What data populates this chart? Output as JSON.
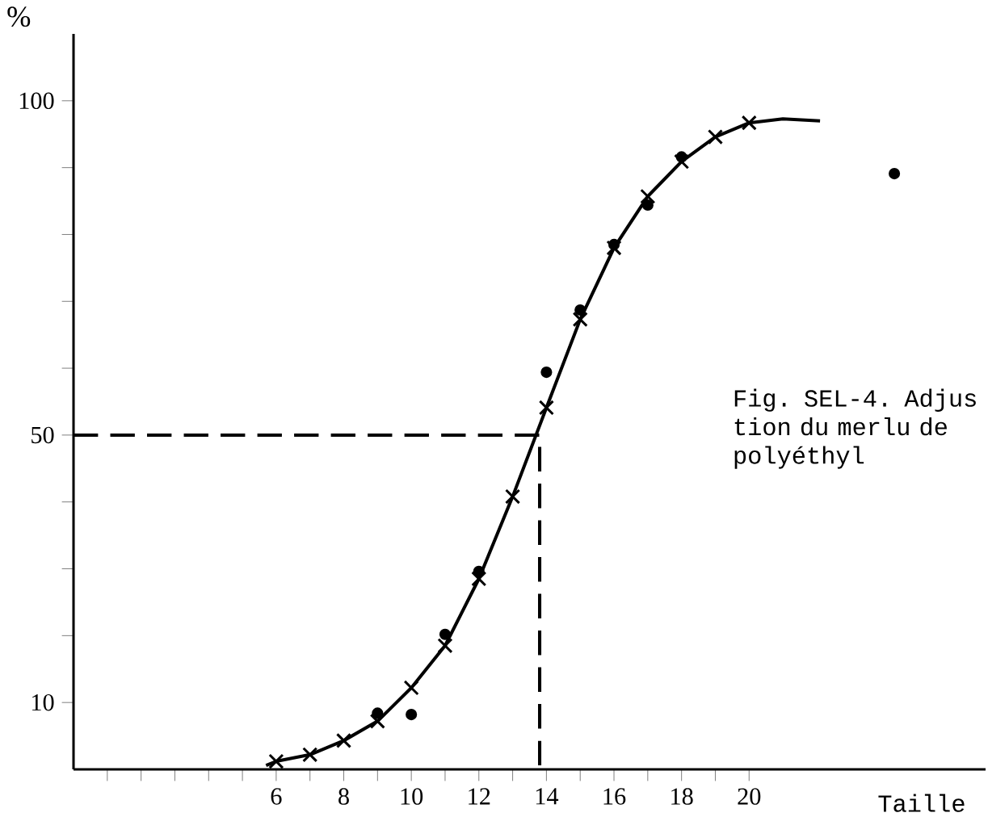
{
  "chart_data": {
    "type": "line",
    "xlabel": "Taille",
    "ylabel": "%",
    "annotations": [
      "Fig. SEL-4. Adjus tion du merlu de polyéthyl"
    ],
    "xlim": [
      0,
      27
    ],
    "ylim": [
      0,
      110
    ],
    "xticks": [
      {
        "value": 1,
        "label": null
      },
      {
        "value": 2,
        "label": null
      },
      {
        "value": 3,
        "label": null
      },
      {
        "value": 4,
        "label": null
      },
      {
        "value": 5,
        "label": null
      },
      6,
      {
        "value": 7,
        "label": null
      },
      8,
      {
        "value": 9,
        "label": null
      },
      10,
      {
        "value": 11,
        "label": null
      },
      12,
      {
        "value": 13,
        "label": null
      },
      14,
      {
        "value": 15,
        "label": null
      },
      16,
      {
        "value": 17,
        "label": null
      },
      18,
      {
        "value": 19,
        "label": null
      },
      20
    ],
    "yticks": [
      10,
      {
        "value": 20,
        "label": null
      },
      {
        "value": 30,
        "label": null
      },
      {
        "value": 40,
        "label": null
      },
      50,
      {
        "value": 60,
        "label": null
      },
      {
        "value": 70,
        "label": null
      },
      {
        "value": 80,
        "label": null
      },
      {
        "value": 90,
        "label": null
      },
      100
    ],
    "series": [
      {
        "type": "line",
        "color": "#000000",
        "marker": "none",
        "line_style": "solid",
        "x": [
          5.7,
          6,
          7,
          8,
          9,
          10,
          11,
          12,
          13,
          14,
          15,
          16,
          17,
          18,
          19,
          20,
          21,
          22.1
        ],
        "values": [
          0.6,
          1.2,
          2.2,
          4.3,
          7.2,
          12.2,
          18.5,
          28.5,
          40.8,
          54.1,
          67.3,
          78.0,
          85.7,
          90.9,
          94.6,
          96.7,
          97.3,
          97.0
        ]
      },
      {
        "type": "scatter",
        "color": "#000000",
        "marker": "cross",
        "x": [
          6,
          7,
          8,
          9,
          10,
          11,
          12,
          13,
          14,
          15,
          16,
          17,
          18,
          19,
          20
        ],
        "values": [
          1.2,
          2.2,
          4.3,
          7.2,
          12.2,
          18.5,
          28.5,
          40.8,
          54.1,
          67.3,
          78.0,
          85.7,
          90.9,
          94.6,
          96.7
        ]
      },
      {
        "type": "scatter",
        "color": "#000000",
        "marker": "circle",
        "x": [
          9,
          10,
          11,
          12,
          14,
          15,
          16,
          17,
          18,
          24.3
        ],
        "values": [
          8.4,
          8.2,
          20.2,
          29.6,
          59.4,
          68.7,
          78.5,
          84.4,
          91.6,
          89.1
        ]
      },
      {
        "color": "#000000",
        "marker": "none",
        "line_style": "dashed",
        "x": [
          0,
          13.8,
          13.8
        ],
        "values": [
          50,
          50,
          0
        ]
      }
    ]
  }
}
